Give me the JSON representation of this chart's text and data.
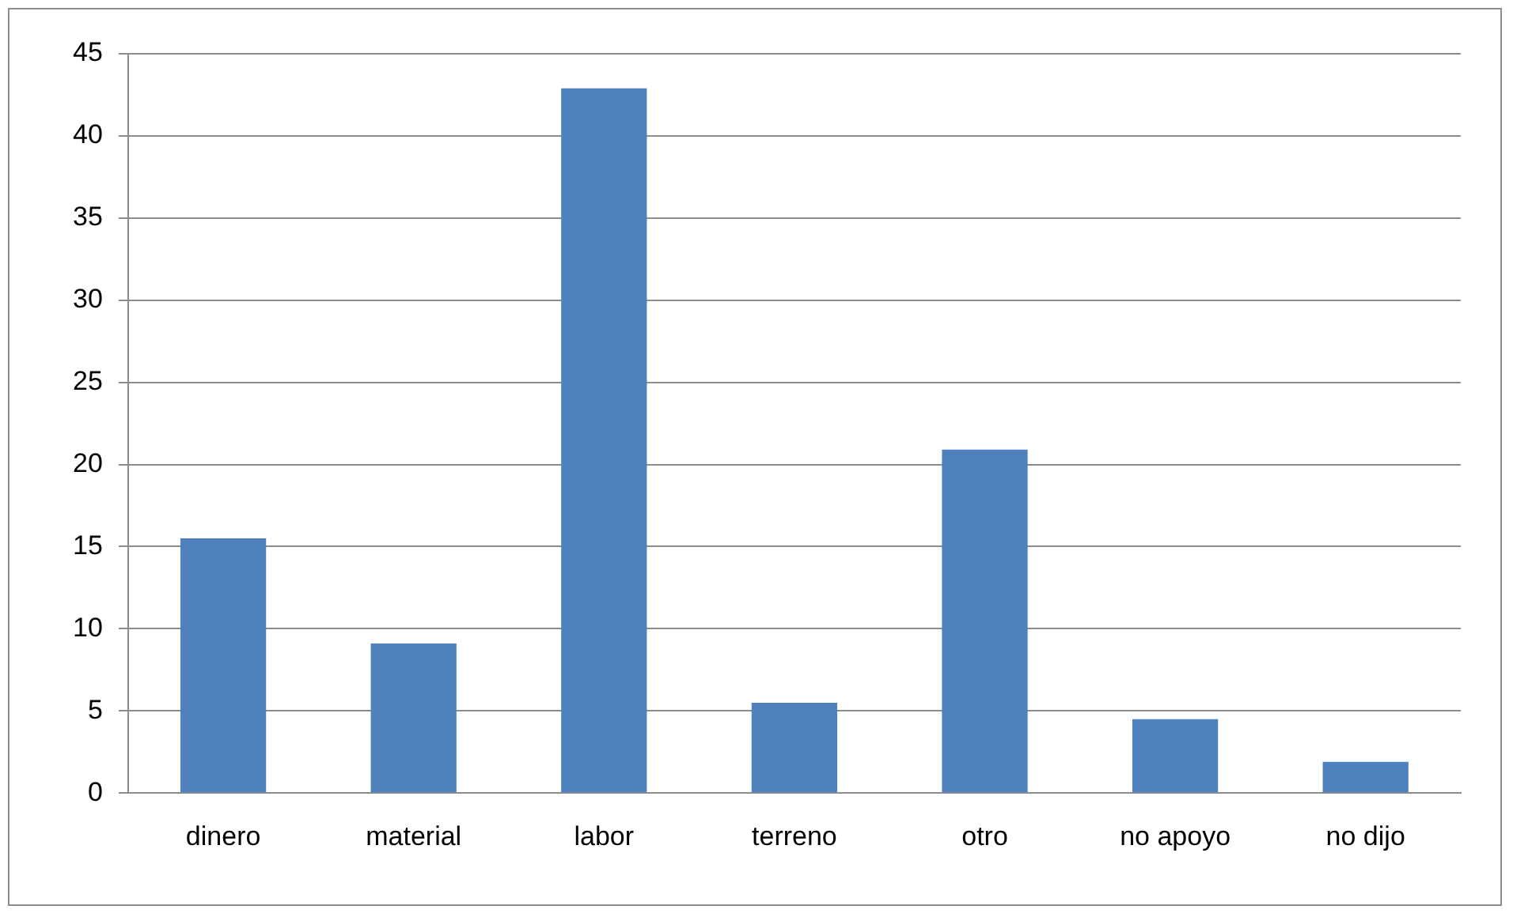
{
  "chart_data": {
    "type": "bar",
    "categories": [
      "dinero",
      "material",
      "labor",
      "terreno",
      "otro",
      "no apoyo",
      "no dijo"
    ],
    "values": [
      15.5,
      9.1,
      42.9,
      5.5,
      20.9,
      4.5,
      1.9
    ],
    "color": "#4f81bd",
    "ylim": [
      0,
      45
    ],
    "yticks": [
      0,
      5,
      10,
      15,
      20,
      25,
      30,
      35,
      40,
      45
    ],
    "grid": "y"
  }
}
